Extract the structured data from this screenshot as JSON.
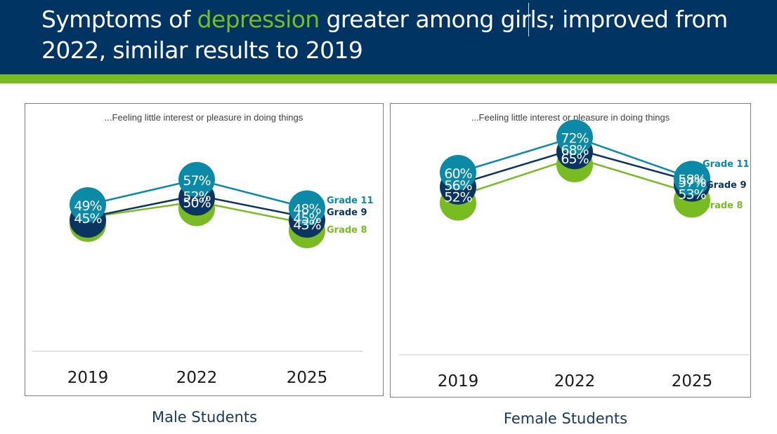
{
  "header": {
    "title_before": "Symptoms of ",
    "title_highlight": "depression",
    "title_after": " greater among girls; improved from 2022, similar results to 2019",
    "highlight_color": "#78bc22",
    "background_color": "#003462",
    "accent_bar_color": "#78bc22"
  },
  "colors": {
    "Grade 11": "#0b8aa8",
    "Grade 9": "#0b3461",
    "Grade 8": "#78bc22"
  },
  "chart_data": [
    {
      "type": "line",
      "id": "male",
      "title": "...Feeling little interest or pleasure in doing things",
      "caption": "Male Students",
      "categories": [
        "2019",
        "2022",
        "2025"
      ],
      "xlabel": "",
      "ylabel": "",
      "ylim": [
        30,
        80
      ],
      "grid": false,
      "legend": "right-end-labels",
      "series": [
        {
          "name": "Grade 8",
          "values": [
            45,
            50,
            43
          ],
          "labels": [
            "",
            "50%",
            "43%"
          ]
        },
        {
          "name": "Grade 9",
          "values": [
            45,
            52,
            45
          ],
          "labels": [
            "45%",
            "52%",
            "45%"
          ]
        },
        {
          "name": "Grade 11",
          "values": [
            49,
            57,
            48
          ],
          "labels": [
            "49%",
            "57%",
            "48%"
          ]
        }
      ]
    },
    {
      "type": "line",
      "id": "female",
      "title": "...Feeling little interest or pleasure in doing things",
      "caption": "Female Students",
      "categories": [
        "2019",
        "2022",
        "2025"
      ],
      "xlabel": "",
      "ylabel": "",
      "ylim": [
        30,
        80
      ],
      "grid": false,
      "legend": "right-end-labels",
      "series": [
        {
          "name": "Grade 8",
          "values": [
            52,
            65,
            53
          ],
          "labels": [
            "52%",
            "65%",
            "53%"
          ]
        },
        {
          "name": "Grade 9",
          "values": [
            56,
            68,
            57
          ],
          "labels": [
            "56%",
            "68%",
            "57%"
          ]
        },
        {
          "name": "Grade 11",
          "values": [
            60,
            72,
            58
          ],
          "labels": [
            "60%",
            "72%",
            "58%"
          ]
        }
      ]
    }
  ]
}
